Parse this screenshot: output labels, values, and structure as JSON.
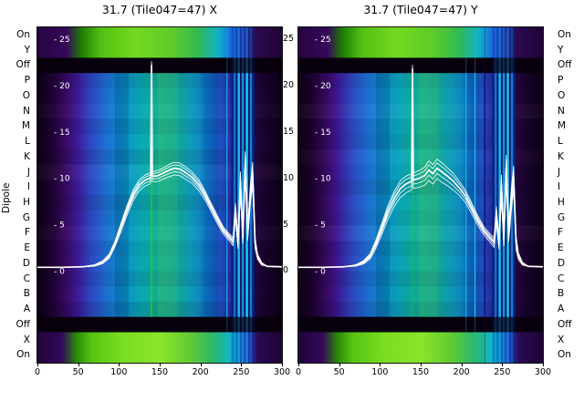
{
  "figure": {
    "background": "#ffffff"
  },
  "titles": {
    "left": "31.7 (Tile047=47) X",
    "right": "31.7 (Tile047=47) Y"
  },
  "axis": {
    "ylabel": "Dipole",
    "dipole_labels": [
      "On",
      "Y",
      "Off",
      "P",
      "O",
      "N",
      "M",
      "L",
      "K",
      "J",
      "I",
      "H",
      "G",
      "F",
      "E",
      "D",
      "C",
      "B",
      "A",
      "Off",
      "X",
      "On"
    ],
    "value_ticks": [
      25,
      20,
      15,
      10,
      5,
      0
    ],
    "x_ticks": [
      0,
      50,
      100,
      150,
      200,
      250,
      300
    ]
  },
  "heatmap_style": {
    "dark_row": "#08010d",
    "top_band": [
      [
        0,
        "#26053f"
      ],
      [
        0.12,
        "#36085a"
      ],
      [
        0.18,
        "#1f7d04"
      ],
      [
        0.26,
        "#53c013"
      ],
      [
        0.4,
        "#74d81f"
      ],
      [
        0.55,
        "#5ecc2a"
      ],
      [
        0.66,
        "#2fba55"
      ],
      [
        0.74,
        "#0fb0c8"
      ],
      [
        0.8,
        "#1a64e0"
      ],
      [
        0.85,
        "#2238b0"
      ],
      [
        0.89,
        "#2c0a50"
      ],
      [
        1,
        "#1e0435"
      ]
    ],
    "bottom_band": [
      [
        0,
        "#20053a"
      ],
      [
        0.1,
        "#33085c"
      ],
      [
        0.16,
        "#2a8a05"
      ],
      [
        0.22,
        "#55c313"
      ],
      [
        0.35,
        "#7ade22"
      ],
      [
        0.5,
        "#8ae52a"
      ],
      [
        0.62,
        "#63cc33"
      ],
      [
        0.72,
        "#2bb86a"
      ],
      [
        0.8,
        "#0bb4d8"
      ],
      [
        0.86,
        "#1f55d6"
      ],
      [
        0.9,
        "#2a0a55"
      ],
      [
        1,
        "#1c0433"
      ]
    ],
    "main": [
      [
        0,
        "#0d0113"
      ],
      [
        0.06,
        "#1e0330"
      ],
      [
        0.12,
        "#3a0a68"
      ],
      [
        0.17,
        "#3d1f9e"
      ],
      [
        0.22,
        "#2f49c4"
      ],
      [
        0.28,
        "#1e6fd2"
      ],
      [
        0.35,
        "#0b93cf"
      ],
      [
        0.42,
        "#0aa8b6"
      ],
      [
        0.5,
        "#14b193"
      ],
      [
        0.57,
        "#0fa79d"
      ],
      [
        0.63,
        "#0b97c0"
      ],
      [
        0.7,
        "#0d74cc"
      ],
      [
        0.76,
        "#2247c0"
      ],
      [
        0.81,
        "#2b1d8e"
      ],
      [
        0.86,
        "#2a0a55"
      ],
      [
        0.92,
        "#1c0430"
      ],
      [
        1,
        "#0d0113"
      ]
    ],
    "col_shades": [
      [
        95,
        112,
        "rgba(0,0,40,0.15)"
      ],
      [
        148,
        172,
        "rgba(130,230,70,0.14)"
      ],
      [
        172,
        200,
        "rgba(70,210,130,0.08)"
      ],
      [
        204,
        222,
        "rgba(0,10,50,0.10)"
      ]
    ],
    "stripes": [
      [
        238,
        240.5,
        "#141a72"
      ],
      [
        240.5,
        243.5,
        "#0c6fd2"
      ],
      [
        243.5,
        245.5,
        "#0a1160"
      ],
      [
        245.5,
        248.5,
        "#17b2e6"
      ],
      [
        248.5,
        250.5,
        "#0a1160"
      ],
      [
        250.5,
        253.5,
        "#128ede"
      ],
      [
        253.5,
        255.5,
        "#081056"
      ],
      [
        255.5,
        258.5,
        "#1ac4ee"
      ],
      [
        258.5,
        260.5,
        "#0a1160"
      ],
      [
        260.5,
        263.5,
        "#0e7dd6"
      ],
      [
        263.5,
        266.5,
        "#0b1a6e"
      ]
    ]
  },
  "chart_data": [
    {
      "type": "heatmap",
      "title": "31.7 (Tile047=47) X",
      "xlim": [
        0,
        300
      ],
      "x_ticks": [
        0,
        50,
        100,
        150,
        200,
        250,
        300
      ],
      "row_labels": [
        "On",
        "Y",
        "Off",
        "P",
        "O",
        "N",
        "M",
        "L",
        "K",
        "J",
        "I",
        "H",
        "G",
        "F",
        "E",
        "D",
        "C",
        "B",
        "A",
        "Off",
        "X",
        "On"
      ],
      "value_ticks": [
        0,
        5,
        10,
        15,
        20,
        25
      ],
      "value_lim": [
        -9.9,
        26.3
      ],
      "row_shades": [
        "rgba(0,0,25,0.10)",
        "rgba(0,0,25,0.03)",
        "rgba(255,255,255,0.02)",
        "rgba(0,0,25,0.07)",
        "rgba(0,0,25,0.00)",
        "rgba(0,0,25,0.09)",
        "rgba(255,255,255,0.03)",
        "rgba(0,0,25,0.02)",
        "rgba(0,0,25,0.11)",
        "rgba(0,0,25,0.04)",
        "rgba(255,255,255,0.02)",
        "rgba(0,0,25,0.06)",
        "rgba(0,0,25,0.02)",
        "rgba(0,0,25,0.10)",
        "rgba(0,0,25,0.01)",
        "rgba(0,0,25,0.13)"
      ],
      "extra_stripes": [
        [
          232,
          233.2,
          "#17c0ec"
        ]
      ],
      "green_line": {
        "ch": 140,
        "color": "#2fd40f",
        "alpha": 0.85
      },
      "overlay_line": {
        "color": "#ffffff",
        "spread_offsets": [
          -1.6,
          1.4,
          -0.8,
          0.8,
          0
        ],
        "points": [
          [
            0,
            0.4,
            0
          ],
          [
            30,
            0.4,
            0
          ],
          [
            55,
            0.45,
            0
          ],
          [
            70,
            0.6,
            0.05
          ],
          [
            80,
            0.95,
            0.1
          ],
          [
            88,
            1.6,
            0.15
          ],
          [
            95,
            2.9,
            0.2
          ],
          [
            102,
            4.6,
            0.3
          ],
          [
            110,
            6.6,
            0.35
          ],
          [
            118,
            8.3,
            0.4
          ],
          [
            125,
            9.3,
            0.4
          ],
          [
            132,
            9.8,
            0.4
          ],
          [
            137,
            10.0,
            0.4
          ],
          [
            139,
            10.1,
            0.35
          ],
          [
            140,
            22.2,
            0.3
          ],
          [
            141,
            10.2,
            0.35
          ],
          [
            148,
            10.3,
            0.4
          ],
          [
            155,
            10.6,
            0.4
          ],
          [
            162,
            10.9,
            0.45
          ],
          [
            168,
            11.1,
            0.45
          ],
          [
            175,
            11.0,
            0.45
          ],
          [
            182,
            10.6,
            0.45
          ],
          [
            190,
            10.1,
            0.4
          ],
          [
            198,
            9.3,
            0.4
          ],
          [
            205,
            8.3,
            0.35
          ],
          [
            212,
            7.1,
            0.3
          ],
          [
            220,
            5.7,
            0.3
          ],
          [
            228,
            4.4,
            0.25
          ],
          [
            235,
            3.7,
            0.25
          ],
          [
            240,
            3.2,
            0.3
          ],
          [
            243,
            6.6,
            0.5
          ],
          [
            246,
            2.9,
            0.3
          ],
          [
            249,
            9.6,
            0.8
          ],
          [
            252,
            3.6,
            0.4
          ],
          [
            255,
            11.6,
            0.9
          ],
          [
            258,
            4.1,
            0.5
          ],
          [
            261,
            8.1,
            0.7
          ],
          [
            264,
            10.6,
            0.8
          ],
          [
            267,
            3.1,
            0.4
          ],
          [
            270,
            1.6,
            0.2
          ],
          [
            275,
            0.8,
            0.1
          ],
          [
            282,
            0.5,
            0
          ],
          [
            300,
            0.45,
            0
          ]
        ]
      }
    },
    {
      "type": "heatmap",
      "title": "31.7 (Tile047=47) Y",
      "xlim": [
        0,
        300
      ],
      "x_ticks": [
        0,
        50,
        100,
        150,
        200,
        250,
        300
      ],
      "row_labels": [
        "On",
        "Y",
        "Off",
        "P",
        "O",
        "N",
        "M",
        "L",
        "K",
        "J",
        "I",
        "H",
        "G",
        "F",
        "E",
        "D",
        "C",
        "B",
        "A",
        "Off",
        "X",
        "On"
      ],
      "value_ticks": [
        0,
        5,
        10,
        15,
        20,
        25
      ],
      "value_lim": [
        -9.9,
        26.3
      ],
      "row_shades": [
        "rgba(0,0,25,0.08)",
        "rgba(0,0,25,0.02)",
        "rgba(255,255,255,0.03)",
        "rgba(0,0,25,0.05)",
        "rgba(0,0,25,0.09)",
        "rgba(255,255,255,0.02)",
        "rgba(0,0,25,0.03)",
        "rgba(0,0,25,0.10)",
        "rgba(0,0,25,0.01)",
        "rgba(0,0,25,0.06)",
        "rgba(255,255,255,0.03)",
        "rgba(0,0,25,0.08)",
        "rgba(0,0,25,0.02)",
        "rgba(0,0,25,0.11)",
        "rgba(0,0,25,0.03)",
        "rgba(0,0,25,0.12)"
      ],
      "extra_stripes": [
        [
          205,
          206.4,
          "#17b2e6"
        ],
        [
          216,
          217.4,
          "#19c2ee"
        ],
        [
          228,
          229.4,
          "#0a1160"
        ]
      ],
      "green_line": {
        "ch": 140,
        "color": "#2fd40f",
        "alpha": 0.35
      },
      "overlay_line": {
        "color": "#ffffff",
        "spread_offsets": [
          -1.6,
          1.4,
          -0.8,
          0.8,
          0
        ],
        "points": [
          [
            0,
            0.4,
            0
          ],
          [
            30,
            0.4,
            0
          ],
          [
            55,
            0.45,
            0
          ],
          [
            70,
            0.6,
            0.05
          ],
          [
            80,
            0.95,
            0.12
          ],
          [
            88,
            1.6,
            0.2
          ],
          [
            95,
            2.9,
            0.3
          ],
          [
            102,
            4.5,
            0.4
          ],
          [
            110,
            6.4,
            0.5
          ],
          [
            118,
            7.9,
            0.55
          ],
          [
            125,
            8.9,
            0.6
          ],
          [
            132,
            9.4,
            0.6
          ],
          [
            137,
            9.6,
            0.6
          ],
          [
            139,
            9.7,
            0.55
          ],
          [
            140,
            21.8,
            0.3
          ],
          [
            141,
            9.8,
            0.55
          ],
          [
            148,
            10.0,
            0.6
          ],
          [
            155,
            10.3,
            0.65
          ],
          [
            160,
            10.9,
            0.7
          ],
          [
            165,
            10.5,
            0.7
          ],
          [
            170,
            11.1,
            0.7
          ],
          [
            176,
            10.7,
            0.7
          ],
          [
            182,
            10.3,
            0.65
          ],
          [
            190,
            9.7,
            0.6
          ],
          [
            198,
            8.9,
            0.5
          ],
          [
            205,
            8.1,
            0.45
          ],
          [
            212,
            6.9,
            0.4
          ],
          [
            220,
            5.5,
            0.35
          ],
          [
            228,
            4.3,
            0.3
          ],
          [
            235,
            3.6,
            0.3
          ],
          [
            240,
            3.1,
            0.35
          ],
          [
            243,
            6.1,
            0.6
          ],
          [
            246,
            2.9,
            0.35
          ],
          [
            249,
            9.1,
            0.9
          ],
          [
            252,
            3.5,
            0.5
          ],
          [
            255,
            11.1,
            1.0
          ],
          [
            258,
            4.1,
            0.6
          ],
          [
            261,
            7.6,
            0.8
          ],
          [
            264,
            10.1,
            0.9
          ],
          [
            267,
            3.1,
            0.5
          ],
          [
            270,
            1.6,
            0.25
          ],
          [
            275,
            0.8,
            0.1
          ],
          [
            282,
            0.5,
            0
          ],
          [
            300,
            0.45,
            0
          ]
        ]
      }
    }
  ]
}
